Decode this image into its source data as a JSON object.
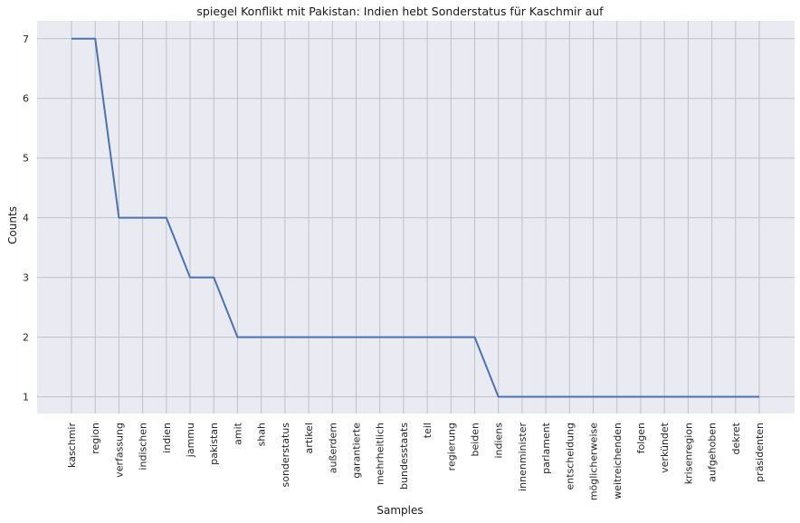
{
  "chart_data": {
    "type": "line",
    "title": "spiegel Konflikt mit Pakistan: Indien hebt Sonderstatus für Kaschmir auf",
    "xlabel": "Samples",
    "ylabel": "Counts",
    "categories": [
      "kaschmir",
      "region",
      "verfassung",
      "indischen",
      "indien",
      "jammu",
      "pakistan",
      "amit",
      "shah",
      "sonderstatus",
      "artikel",
      "außerdem",
      "garantierte",
      "mehrheitlich",
      "bundesstaats",
      "teil",
      "regierung",
      "beiden",
      "indiens",
      "innenminister",
      "parlament",
      "entscheidung",
      "möglicherweise",
      "weitreichenden",
      "folgen",
      "verkündet",
      "krisenregion",
      "aufgehoben",
      "dekret",
      "präsidenten"
    ],
    "values": [
      7,
      7,
      4,
      4,
      4,
      3,
      3,
      2,
      2,
      2,
      2,
      2,
      2,
      2,
      2,
      2,
      2,
      2,
      1,
      1,
      1,
      1,
      1,
      1,
      1,
      1,
      1,
      1,
      1,
      1
    ],
    "yticks": [
      1,
      2,
      3,
      4,
      5,
      6,
      7
    ],
    "ylim": [
      0.72,
      7.3
    ],
    "grid": true,
    "colors": {
      "line": "#4c72b0",
      "background": "#eaeaf2",
      "grid": "#c0c0c8"
    }
  }
}
